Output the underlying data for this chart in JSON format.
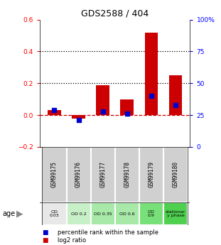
{
  "title": "GDS2588 / 404",
  "samples": [
    "GSM99175",
    "GSM99176",
    "GSM99177",
    "GSM99178",
    "GSM99179",
    "GSM99180"
  ],
  "log2_ratio": [
    0.03,
    -0.02,
    0.19,
    0.1,
    0.52,
    0.25
  ],
  "percentile_rank": [
    29,
    21,
    28,
    26,
    40,
    33
  ],
  "bar_color": "#cc0000",
  "dot_color": "#0000cc",
  "left_ylim": [
    -0.2,
    0.6
  ],
  "right_ylim": [
    0,
    100
  ],
  "left_yticks": [
    -0.2,
    0.0,
    0.2,
    0.4,
    0.6
  ],
  "right_yticks": [
    0,
    25,
    50,
    75,
    100
  ],
  "right_yticklabels": [
    "0",
    "25",
    "50",
    "75",
    "100%"
  ],
  "hlines": [
    0.2,
    0.4
  ],
  "age_labels": [
    "OD\n0.03",
    "OD 0.2",
    "OD 0.35",
    "OD 0.6",
    "OD\n0.9",
    "stationar\ny phase"
  ],
  "age_colors": [
    "#e8e8e8",
    "#c8f0c8",
    "#a8e8a8",
    "#a8e8a8",
    "#78e078",
    "#50d050"
  ],
  "sample_bg_color": "#d0d0d0",
  "legend_items": [
    "log2 ratio",
    "percentile rank within the sample"
  ],
  "legend_colors": [
    "#cc0000",
    "#0000cc"
  ],
  "dashed_line_color": "#cc0000",
  "dotted_line_color": "#000000",
  "zero_line_y": 0.0
}
